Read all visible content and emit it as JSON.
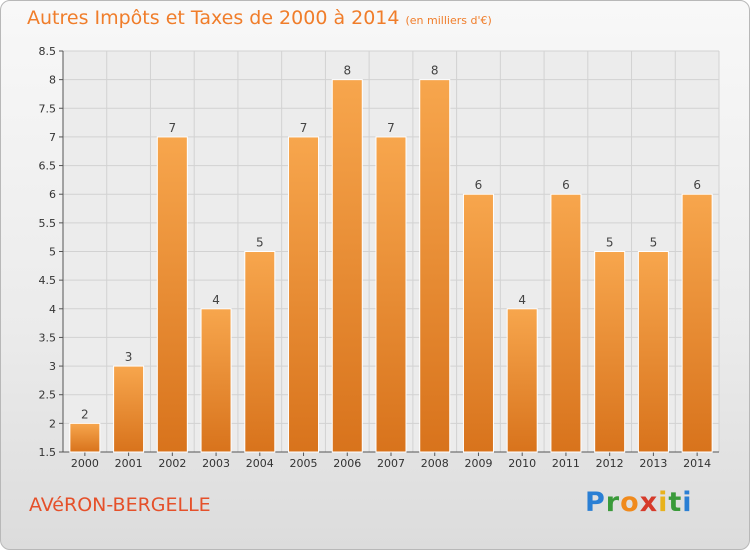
{
  "title": {
    "main": "Autres Impôts et Taxes de 2000 à 2014",
    "unit": "(en milliers d'€)"
  },
  "commune": "AVéRON-BERGELLE",
  "logo": {
    "letters": [
      {
        "char": "P",
        "color": "#2a7fd4"
      },
      {
        "char": "r",
        "color": "#3a9a3a"
      },
      {
        "char": "o",
        "color": "#f08a1c"
      },
      {
        "char": "x",
        "color": "#d63a2a"
      },
      {
        "char": "i",
        "color": "#e8b21c"
      },
      {
        "char": "t",
        "color": "#3a9a3a"
      },
      {
        "char": "i",
        "color": "#2a7fd4"
      }
    ]
  },
  "chart_data": {
    "type": "bar",
    "title": "Autres Impôts et Taxes de 2000 à 2014",
    "subtitle": "(en milliers d'€)",
    "xlabel": "",
    "ylabel": "",
    "categories": [
      "2000",
      "2001",
      "2002",
      "2003",
      "2004",
      "2005",
      "2006",
      "2007",
      "2008",
      "2009",
      "2010",
      "2011",
      "2012",
      "2013",
      "2014"
    ],
    "values": [
      2,
      3,
      7,
      4,
      5,
      7,
      8,
      7,
      8,
      6,
      4,
      6,
      5,
      5,
      6
    ],
    "data_labels": [
      "2",
      "3",
      "7",
      "4",
      "5",
      "7",
      "8",
      "7",
      "8",
      "6",
      "4",
      "6",
      "5",
      "5",
      "6"
    ],
    "ylim": [
      1.5,
      8.5
    ],
    "yticks": [
      1.5,
      2,
      2.5,
      3,
      3.5,
      4,
      4.5,
      5,
      5.5,
      6,
      6.5,
      7,
      7.5,
      8,
      8.5
    ],
    "ytick_labels": [
      "1.5",
      "2",
      "2.5",
      "3",
      "3.5",
      "4",
      "4.5",
      "5",
      "5.5",
      "6",
      "6.5",
      "7",
      "7.5",
      "8",
      "8.5"
    ],
    "grid": true,
    "colors": {
      "bar_top": "#f7a64d",
      "bar_bottom": "#d8731c",
      "title": "#f07d2a",
      "commune": "#e5502a"
    }
  }
}
